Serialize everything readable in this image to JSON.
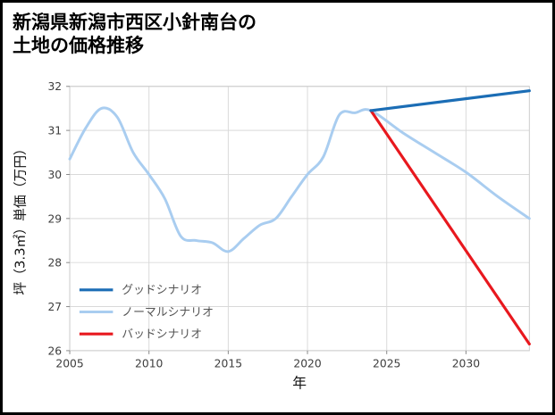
{
  "chart_data": {
    "type": "line",
    "title": "新潟県新潟市西区小針南台の土地の価格推移",
    "title_lines": [
      "新潟県新潟市西区小針南台の",
      "土地の価格推移"
    ],
    "xlabel": "年",
    "ylabel": "坪（3.3㎡）単価（万円）",
    "xlim": [
      2005,
      2034
    ],
    "ylim": [
      26,
      32
    ],
    "xticks": [
      2005,
      2010,
      2015,
      2020,
      2025,
      2030
    ],
    "yticks": [
      26,
      27,
      28,
      29,
      30,
      31,
      32
    ],
    "grid": true,
    "legend_position": "lower-left",
    "colors": {
      "grid": "#d9d9d9",
      "plot_border": "#cccccc",
      "tick_mark": "#888888",
      "tick_text": "#3d3d3d",
      "axis_label_text": "#111111",
      "legend_text": "#555555",
      "background": "#ffffff"
    },
    "series": [
      {
        "name": "グッドシナリオ",
        "color": "#1b6db5",
        "line_width": 3.2,
        "zorder": 3,
        "x": [
          2024,
          2034
        ],
        "y": [
          31.45,
          31.9
        ]
      },
      {
        "name": "ノーマルシナリオ",
        "color": "#a9cdf0",
        "line_width": 3,
        "zorder": 1,
        "x": [
          2005,
          2006,
          2007,
          2008,
          2009,
          2010,
          2011,
          2012,
          2013,
          2014,
          2015,
          2016,
          2017,
          2018,
          2019,
          2020,
          2021,
          2022,
          2023,
          2024,
          2026,
          2028,
          2030,
          2032,
          2034
        ],
        "y": [
          30.35,
          31.05,
          31.5,
          31.3,
          30.5,
          30.0,
          29.45,
          28.6,
          28.5,
          28.45,
          28.25,
          28.55,
          28.85,
          29.0,
          29.5,
          30.0,
          30.4,
          31.35,
          31.4,
          31.45,
          30.95,
          30.5,
          30.05,
          29.5,
          29.0
        ]
      },
      {
        "name": "バッドシナリオ",
        "color": "#e8181e",
        "line_width": 3.2,
        "zorder": 2,
        "x": [
          2024,
          2034
        ],
        "y": [
          31.45,
          26.15
        ]
      }
    ]
  }
}
